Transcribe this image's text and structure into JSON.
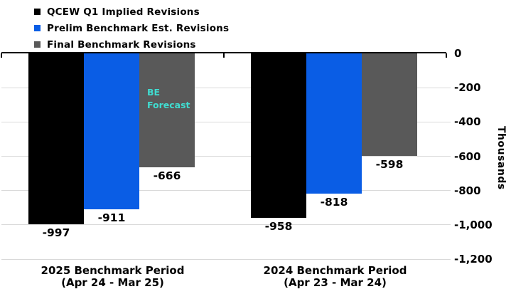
{
  "chart_data": {
    "type": "bar",
    "orientation": "vertical",
    "grid": true,
    "legend_position": "top-left",
    "background": "#ffffff",
    "gridline_color": "#d9d9d9",
    "axis_color": "#000000",
    "ylabel": "Thousands",
    "ylim": [
      -1200,
      0
    ],
    "yticks": [
      {
        "value": 0,
        "label": "0"
      },
      {
        "value": -200,
        "label": "-200"
      },
      {
        "value": -400,
        "label": "-400"
      },
      {
        "value": -600,
        "label": "-600"
      },
      {
        "value": -800,
        "label": "-800"
      },
      {
        "value": -1000,
        "label": "-1,000"
      },
      {
        "value": -1200,
        "label": "-1,200"
      }
    ],
    "categories": [
      {
        "line1": "2025 Benchmark Period",
        "line2": "(Apr 24 - Mar 25)"
      },
      {
        "line1": "2024 Benchmark Period",
        "line2": "(Apr 23 - Mar 24)"
      }
    ],
    "series": [
      {
        "name": "QCEW Q1 Implied Revisions",
        "color": "#000000",
        "values": [
          -997,
          -958
        ],
        "labels": [
          "-997",
          "-958"
        ]
      },
      {
        "name": "Prelim Benchmark Est. Revisions",
        "color": "#0a5de5",
        "values": [
          -911,
          -818
        ],
        "labels": [
          "-911",
          "-818"
        ]
      },
      {
        "name": "Final Benchmark Revisions",
        "color": "#595959",
        "values": [
          -666,
          -598
        ],
        "labels": [
          "-666",
          "-598"
        ]
      }
    ],
    "annotation": {
      "line1": "BE",
      "line2": "Forecast",
      "color": "#40dcd0",
      "series_index": 2,
      "group_index": 0,
      "style": "dotted-black-pattern"
    }
  }
}
